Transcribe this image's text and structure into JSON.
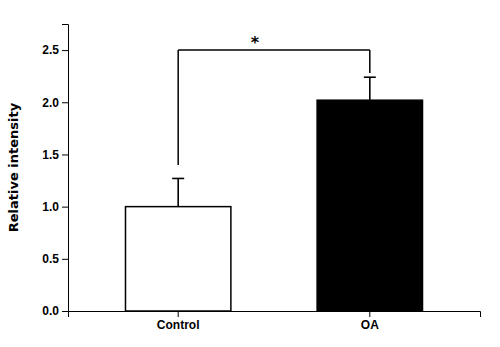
{
  "chart_data": {
    "type": "bar",
    "categories": [
      "Control",
      "OA"
    ],
    "values": [
      1.0,
      2.02
    ],
    "errors_up": [
      0.27,
      0.22
    ],
    "errors_down": [
      0.0,
      0.0
    ],
    "colors": [
      "#ffffff",
      "#000000"
    ],
    "ylabel": "Relative intensity",
    "ylim": [
      0,
      2.75
    ],
    "yticks": [
      {
        "value": 0,
        "label": "0.0"
      },
      0.5,
      {
        "value": 1.0,
        "label": "1.0"
      },
      1.5,
      {
        "value": 2.0,
        "label": "2.0"
      },
      2.5
    ],
    "grid": false,
    "bracket": {
      "y": 2.5,
      "drop_left": 1.4,
      "drop_right": 2.28,
      "text": "*"
    }
  }
}
